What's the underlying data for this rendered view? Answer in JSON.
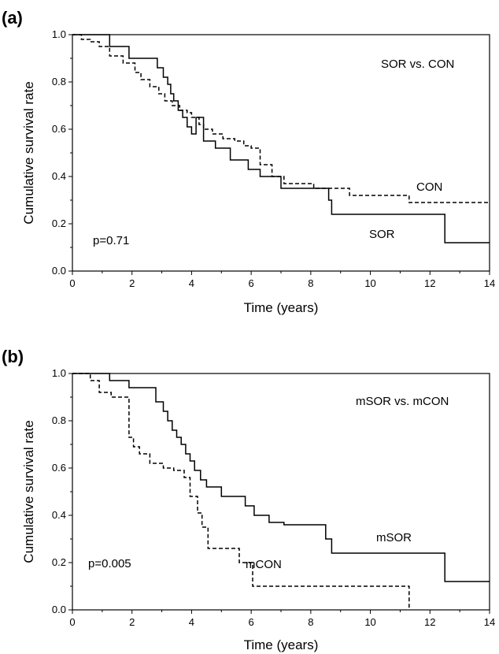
{
  "figure": {
    "panels": [
      {
        "panel_label": "(a)",
        "annotation": "SOR vs. CON",
        "pvalue": "p=0.71",
        "xlabel": "Time (years)",
        "ylabel": "Cumulative survival rate"
      },
      {
        "panel_label": "(b)",
        "annotation": "mSOR vs. mCON",
        "pvalue": "p=0.005",
        "xlabel": "Time (years)",
        "ylabel": "Cumulative survival rate"
      }
    ]
  },
  "chart_data": [
    {
      "type": "line",
      "step": true,
      "title": "(a)",
      "xlabel": "Time (years)",
      "ylabel": "Cumulative survival rate",
      "xlim": [
        0,
        14
      ],
      "ylim": [
        0,
        1
      ],
      "xticks": [
        0,
        2,
        4,
        6,
        8,
        10,
        12,
        14
      ],
      "yticks": [
        "0.0",
        "0.2",
        "0.4",
        "0.6",
        "0.8",
        "1.0"
      ],
      "grid": false,
      "annotations": [
        "SOR vs. CON",
        "p=0.71"
      ],
      "series": [
        {
          "name": "SOR",
          "style": "solid",
          "x": [
            0,
            1.25,
            1.9,
            2.85,
            3.05,
            3.2,
            3.3,
            3.4,
            3.55,
            3.7,
            3.85,
            4.0,
            4.15,
            4.4,
            4.8,
            5.3,
            5.9,
            6.3,
            7.0,
            8.6,
            8.7,
            12.5,
            14
          ],
          "y": [
            1.0,
            0.95,
            0.9,
            0.86,
            0.82,
            0.79,
            0.75,
            0.72,
            0.68,
            0.65,
            0.61,
            0.58,
            0.65,
            0.55,
            0.52,
            0.47,
            0.43,
            0.4,
            0.35,
            0.3,
            0.24,
            0.12,
            0.12
          ]
        },
        {
          "name": "CON",
          "style": "dashed",
          "x": [
            0,
            0.3,
            0.6,
            0.9,
            1.25,
            1.7,
            2.1,
            2.3,
            2.6,
            2.9,
            3.1,
            3.35,
            3.6,
            3.85,
            4.0,
            4.25,
            4.4,
            4.7,
            5.05,
            5.45,
            5.75,
            6.0,
            6.3,
            6.7,
            7.1,
            8.1,
            9.3,
            11.3,
            14
          ],
          "y": [
            1.0,
            0.98,
            0.97,
            0.95,
            0.91,
            0.88,
            0.84,
            0.81,
            0.78,
            0.75,
            0.72,
            0.7,
            0.68,
            0.67,
            0.65,
            0.62,
            0.6,
            0.58,
            0.56,
            0.55,
            0.53,
            0.52,
            0.45,
            0.4,
            0.37,
            0.35,
            0.32,
            0.29,
            0.29
          ]
        }
      ]
    },
    {
      "type": "line",
      "step": true,
      "title": "(b)",
      "xlabel": "Time (years)",
      "ylabel": "Cumulative survival rate",
      "xlim": [
        0,
        14
      ],
      "ylim": [
        0,
        1
      ],
      "xticks": [
        0,
        2,
        4,
        6,
        8,
        10,
        12,
        14
      ],
      "yticks": [
        "0.0",
        "0.2",
        "0.4",
        "0.6",
        "0.8",
        "1.0"
      ],
      "grid": false,
      "annotations": [
        "mSOR vs. mCON",
        "p=0.005"
      ],
      "series": [
        {
          "name": "mSOR",
          "style": "solid",
          "x": [
            0,
            1.25,
            1.9,
            2.8,
            3.05,
            3.2,
            3.35,
            3.5,
            3.65,
            3.8,
            3.95,
            4.1,
            4.3,
            4.5,
            5.0,
            5.8,
            6.1,
            6.6,
            7.1,
            8.5,
            8.7,
            12.5,
            14
          ],
          "y": [
            1.0,
            0.97,
            0.94,
            0.88,
            0.84,
            0.8,
            0.76,
            0.73,
            0.7,
            0.66,
            0.63,
            0.59,
            0.55,
            0.52,
            0.48,
            0.44,
            0.4,
            0.37,
            0.36,
            0.3,
            0.24,
            0.12,
            0.12
          ]
        },
        {
          "name": "mCON",
          "style": "dashed",
          "x": [
            0,
            0.6,
            0.9,
            1.3,
            1.9,
            2.05,
            2.25,
            2.6,
            3.05,
            3.4,
            3.75,
            3.95,
            4.2,
            4.35,
            4.55,
            5.6,
            6.05,
            11.3
          ],
          "y": [
            1.0,
            0.97,
            0.92,
            0.9,
            0.73,
            0.69,
            0.66,
            0.62,
            0.6,
            0.59,
            0.56,
            0.48,
            0.41,
            0.35,
            0.26,
            0.2,
            0.1,
            0.0
          ]
        }
      ]
    }
  ]
}
